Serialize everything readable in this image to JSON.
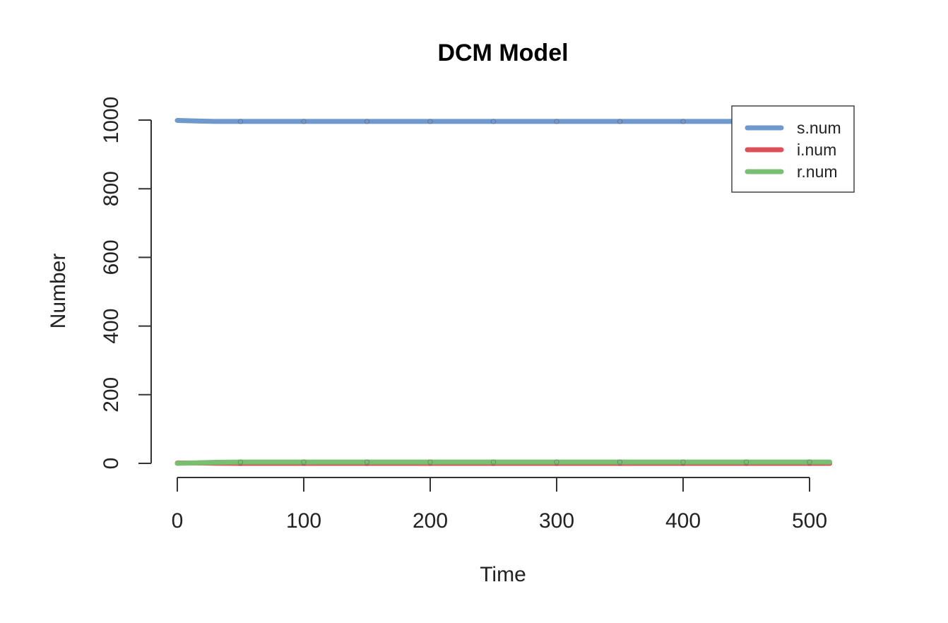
{
  "chart_data": {
    "type": "line",
    "title": "DCM Model",
    "xlabel": "Time",
    "ylabel": "Number",
    "xlim": [
      0,
      516
    ],
    "ylim": [
      0,
      1000
    ],
    "xticks": [
      0,
      100,
      200,
      300,
      400,
      500
    ],
    "yticks": [
      0,
      200,
      400,
      600,
      800,
      1000
    ],
    "grid": false,
    "legend_position": "top-right",
    "x": [
      0,
      10,
      20,
      30,
      50,
      100,
      150,
      200,
      250,
      300,
      350,
      400,
      450,
      500,
      516
    ],
    "series": [
      {
        "name": "s.num",
        "color": "#6f98cc",
        "values": [
          999,
          998,
          997,
          996,
          996,
          996,
          996,
          996,
          996,
          996,
          996,
          996,
          996,
          996,
          996
        ]
      },
      {
        "name": "i.num",
        "color": "#dc5057",
        "values": [
          1,
          1,
          1,
          0.5,
          0,
          0,
          0,
          0,
          0,
          0,
          0,
          0,
          0,
          0,
          0
        ]
      },
      {
        "name": "r.num",
        "color": "#79bf71",
        "values": [
          0,
          1,
          2,
          3,
          4,
          4,
          4,
          4,
          4,
          4,
          4,
          4,
          4,
          4,
          4
        ]
      }
    ],
    "markers_x": [
      50,
      100,
      150,
      200,
      250,
      300,
      350,
      400,
      450,
      500
    ]
  }
}
